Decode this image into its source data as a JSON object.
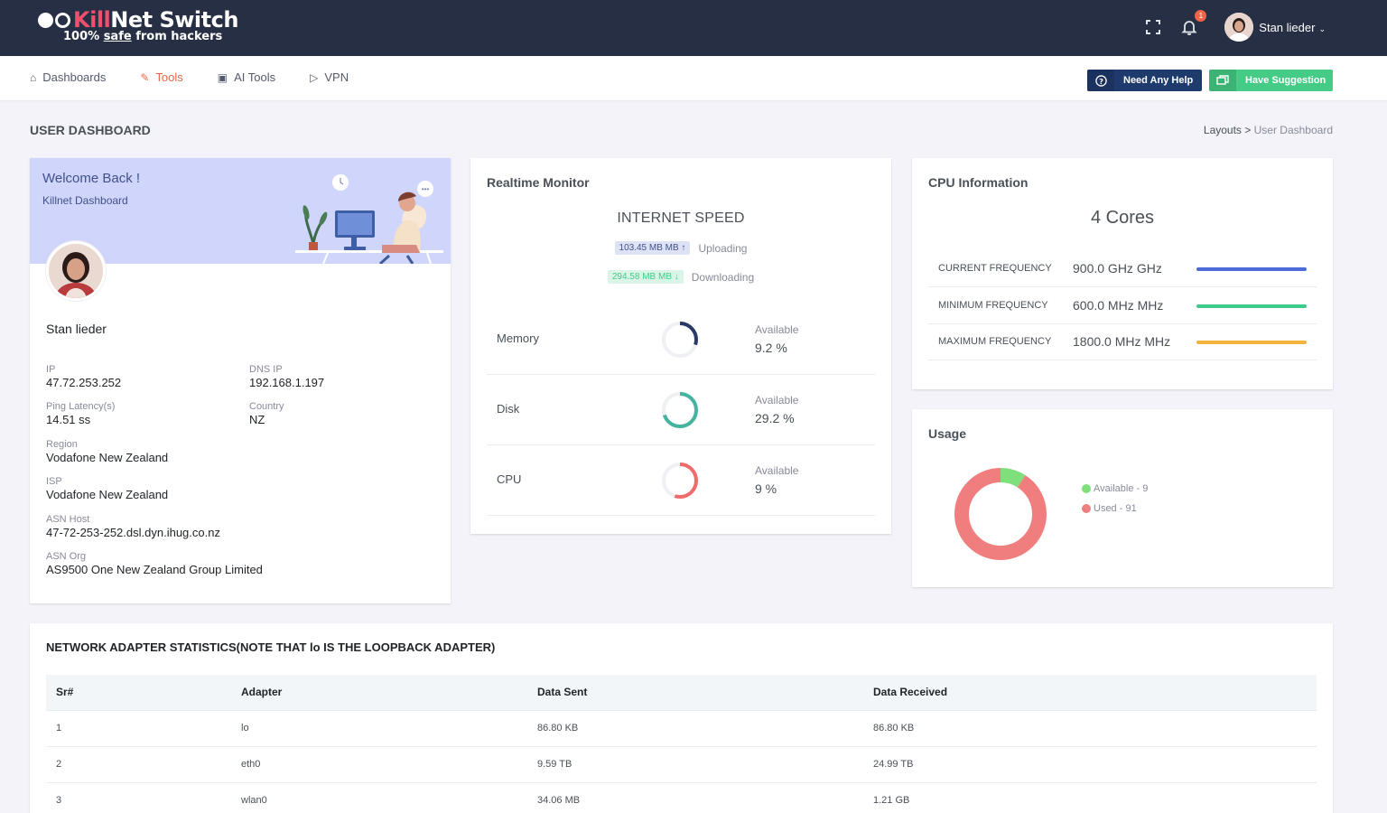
{
  "brand": {
    "prefix": "",
    "kill": "Kill",
    "net": "Net Switch",
    "tag_a": "100% ",
    "tag_b": "safe",
    "tag_c": " from hackers"
  },
  "topbar": {
    "notif_count": "1",
    "user_name": "Stan lieder"
  },
  "nav": [
    {
      "label": "Dashboards",
      "icon": "home-icon"
    },
    {
      "label": "Tools",
      "icon": "tools-icon"
    },
    {
      "label": "AI Tools",
      "icon": "robot-icon"
    },
    {
      "label": "VPN",
      "icon": "vpn-icon"
    }
  ],
  "buttons": {
    "help": "Need Any Help",
    "suggestion": "Have Suggestion"
  },
  "page": {
    "title": "USER DASHBOARD",
    "crumb_parent": "Layouts",
    "crumb_sep": ">",
    "crumb_current": "User Dashboard"
  },
  "profile": {
    "welcome": "Welcome Back !",
    "subtitle": "Killnet Dashboard",
    "name": "Stan lieder",
    "ip_label": "IP",
    "ip": "47.72.253.252",
    "dns_label": "DNS IP",
    "dns": "192.168.1.197",
    "ping_label": "Ping Latency(s)",
    "ping": "14.51 ss",
    "country_label": "Country",
    "country": "NZ",
    "region_label": "Region",
    "region": "Vodafone New Zealand",
    "isp_label": "ISP",
    "isp": "Vodafone New Zealand",
    "asn_host_label": "ASN Host",
    "asn_host": "47-72-253-252.dsl.dyn.ihug.co.nz",
    "asn_org_label": "ASN Org",
    "asn_org": "AS9500 One New Zealand Group Limited"
  },
  "realtime": {
    "title": "Realtime Monitor",
    "speed_title": "INTERNET SPEED",
    "upload_value": "103.45 MB MB ↑",
    "upload_label": "Uploading",
    "download_value": "294.58 MB MB ↓",
    "download_label": "Downloading",
    "rows": [
      {
        "label": "Memory",
        "avail_label": "Available",
        "avail": "9.2 %",
        "percent": 30,
        "color": "#2a3a68"
      },
      {
        "label": "Disk",
        "avail_label": "Available",
        "avail": "29.2 %",
        "percent": 70,
        "color": "#45b39d"
      },
      {
        "label": "CPU",
        "avail_label": "Available",
        "avail": "9 %",
        "percent": 55,
        "color": "#f06c6c"
      }
    ]
  },
  "cpu": {
    "title": "CPU Information",
    "cores": "4 Cores",
    "rows": [
      {
        "label": "CURRENT FREQUENCY",
        "value": "900.0 GHz GHz",
        "color": "#4b6cd8"
      },
      {
        "label": "MINIMUM FREQUENCY",
        "value": "600.0 MHz MHz",
        "color": "#3cc98a"
      },
      {
        "label": "MAXIMUM FREQUENCY",
        "value": "1800.0 MHz MHz",
        "color": "#f3b33d"
      }
    ]
  },
  "usage": {
    "title": "Usage",
    "legend": [
      {
        "label": "Available - 9",
        "value": 9,
        "color": "#7ee07a"
      },
      {
        "label": "Used - 91",
        "value": 91,
        "color": "#f07e7e"
      }
    ]
  },
  "network": {
    "title": "NETWORK ADAPTER STATISTICS(NOTE THAT lo IS THE LOOPBACK ADAPTER)",
    "columns": [
      "Sr#",
      "Adapter",
      "Data Sent",
      "Data Received"
    ],
    "rows": [
      [
        "1",
        "lo",
        "86.80 KB",
        "86.80 KB"
      ],
      [
        "2",
        "eth0",
        "9.59 TB",
        "24.99 TB"
      ],
      [
        "3",
        "wlan0",
        "34.06 MB",
        "1.21 GB"
      ]
    ]
  }
}
